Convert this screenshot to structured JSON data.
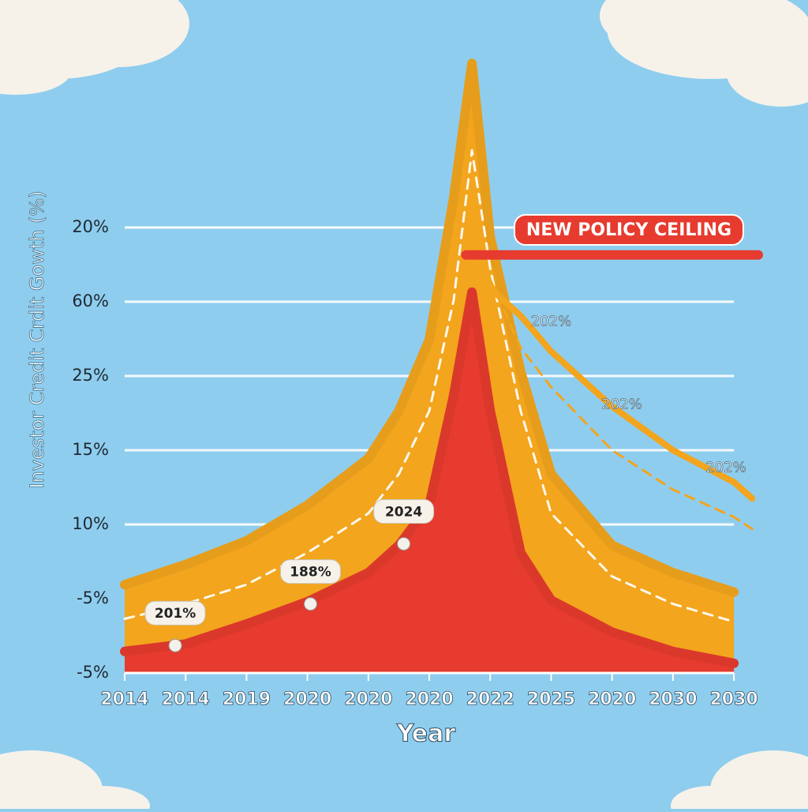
{
  "chart_data": {
    "type": "area",
    "y_label": "Investor  Credit Crdit Gowth (%)",
    "x_label": "Year",
    "x": [
      0,
      1,
      2,
      3,
      4,
      4.5,
      5,
      5.4,
      5.7,
      6,
      6.5,
      7,
      8,
      9,
      10,
      10.3
    ],
    "xlim": [
      0,
      10.4
    ],
    "xticks": [
      {
        "value": 0,
        "label": "2014"
      },
      {
        "value": 1,
        "label": "2014"
      },
      {
        "value": 2,
        "label": "2019"
      },
      {
        "value": 3,
        "label": "2020"
      },
      {
        "value": 4,
        "label": "2020"
      },
      {
        "value": 5,
        "label": "2020"
      },
      {
        "value": 6,
        "label": "2022"
      },
      {
        "value": 7,
        "label": "2025"
      },
      {
        "value": 8,
        "label": "2020"
      },
      {
        "value": 9,
        "label": "2030"
      },
      {
        "value": 10,
        "label": "2030"
      }
    ],
    "ylim": [
      0,
      8.5
    ],
    "yticks": [
      {
        "value": 0,
        "label": "-5%"
      },
      {
        "value": 1,
        "label": "-5%"
      },
      {
        "value": 2,
        "label": "10%"
      },
      {
        "value": 3,
        "label": "15%"
      },
      {
        "value": 4,
        "label": "25%"
      },
      {
        "value": 5,
        "label": "60%"
      },
      {
        "value": 6,
        "label": "20%"
      }
    ],
    "grid": true,
    "series": [
      {
        "kind": "area",
        "color": "#f2a51d",
        "values": [
          1.19,
          1.46,
          1.78,
          2.26,
          2.89,
          3.53,
          4.49,
          6.4,
          8.21,
          5.87,
          4.06,
          2.68,
          1.72,
          1.35,
          1.09,
          null
        ]
      },
      {
        "kind": "area",
        "color": "#e63b2e",
        "values": [
          0.29,
          0.39,
          0.66,
          0.96,
          1.35,
          1.72,
          2.26,
          3.74,
          5.13,
          3.53,
          1.62,
          0.98,
          0.55,
          0.29,
          0.13,
          null
        ]
      },
      {
        "kind": "dashed",
        "color": "#fff8ec",
        "values": [
          0.73,
          0.93,
          1.19,
          1.62,
          2.15,
          2.68,
          3.53,
          5.02,
          7.04,
          5.45,
          3.53,
          2.15,
          1.3,
          0.93,
          0.69,
          null
        ]
      },
      {
        "kind": "line",
        "color": "#f2a51d",
        "values": [
          null,
          null,
          null,
          null,
          null,
          null,
          null,
          null,
          5.34,
          5.18,
          4.81,
          4.33,
          3.59,
          3.0,
          2.57,
          2.35
        ]
      },
      {
        "kind": "dashed",
        "color": "#f2a51d",
        "values": [
          null,
          null,
          null,
          null,
          null,
          null,
          null,
          null,
          null,
          5.3,
          4.38,
          3.85,
          3.0,
          2.47,
          2.1,
          1.94
        ]
      }
    ],
    "point_labels": [
      {
        "text": "201%",
        "x": 0.83,
        "y": 0.37
      },
      {
        "text": "188%",
        "x": 3.05,
        "y": 0.93
      },
      {
        "text": "2024",
        "x": 4.58,
        "y": 1.74
      }
    ],
    "line_labels": [
      {
        "text": "202%",
        "x": 7.0,
        "y": 4.73
      },
      {
        "text": "202%",
        "x": 8.16,
        "y": 3.61
      },
      {
        "text": "202%",
        "x": 9.87,
        "y": 2.76
      }
    ],
    "ceiling": {
      "label": "NEW POLICY CEILING",
      "value": 5.63,
      "x_start": 5.6,
      "color": "#e63b2e"
    }
  }
}
